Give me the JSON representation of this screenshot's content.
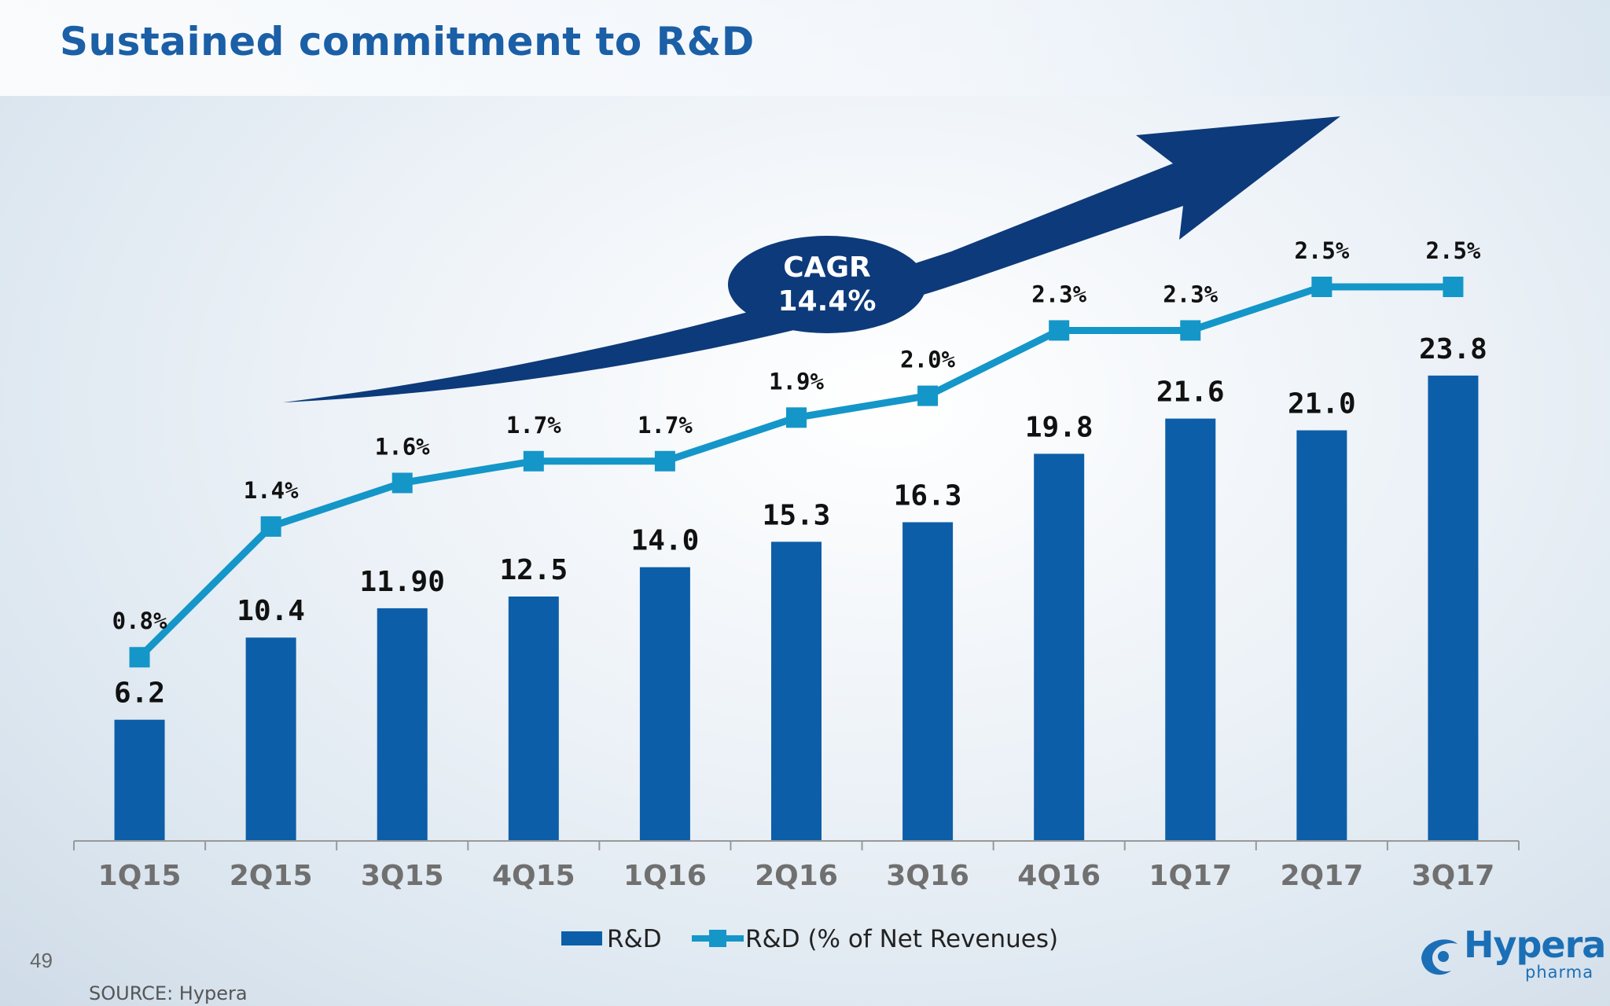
{
  "title": "Sustained commitment to R&D",
  "page_number": "49",
  "source": "SOURCE: Hypera",
  "logo": {
    "word": "Hypera",
    "sub": "pharma"
  },
  "colors": {
    "title": "#1b5fa6",
    "bar": "#0d5ea8",
    "line": "#1496c8",
    "arrow": "#0d3a7a",
    "label": "#111111",
    "axis": "#999999",
    "tick_label": "#707070"
  },
  "chart_data": {
    "type": "bar",
    "categories": [
      "1Q15",
      "2Q15",
      "3Q15",
      "4Q15",
      "1Q16",
      "2Q16",
      "3Q16",
      "4Q16",
      "1Q17",
      "2Q17",
      "3Q17"
    ],
    "series": [
      {
        "name": "R&D",
        "type": "bar",
        "values": [
          6.2,
          10.4,
          11.9,
          12.5,
          14.0,
          15.3,
          16.3,
          19.8,
          21.6,
          21.0,
          23.8
        ],
        "labels": [
          "6.2",
          "10.4",
          "11.90",
          "12.5",
          "14.0",
          "15.3",
          "16.3",
          "19.8",
          "21.6",
          "21.0",
          "23.8"
        ]
      },
      {
        "name": "R&D (% of Net Revenues)",
        "type": "line",
        "values": [
          0.8,
          1.4,
          1.6,
          1.7,
          1.7,
          1.9,
          2.0,
          2.3,
          2.3,
          2.5,
          2.5
        ],
        "labels": [
          "0.8%",
          "1.4%",
          "1.6%",
          "1.7%",
          "1.7%",
          "1.9%",
          "2.0%",
          "2.3%",
          "2.3%",
          "2.5%",
          "2.5%"
        ]
      }
    ],
    "annotation": {
      "line1": "CAGR",
      "line2": "14.4%"
    },
    "legend_position": "bottom-center",
    "xlabel": "",
    "ylabel": "",
    "ylim": [
      0,
      25
    ]
  }
}
